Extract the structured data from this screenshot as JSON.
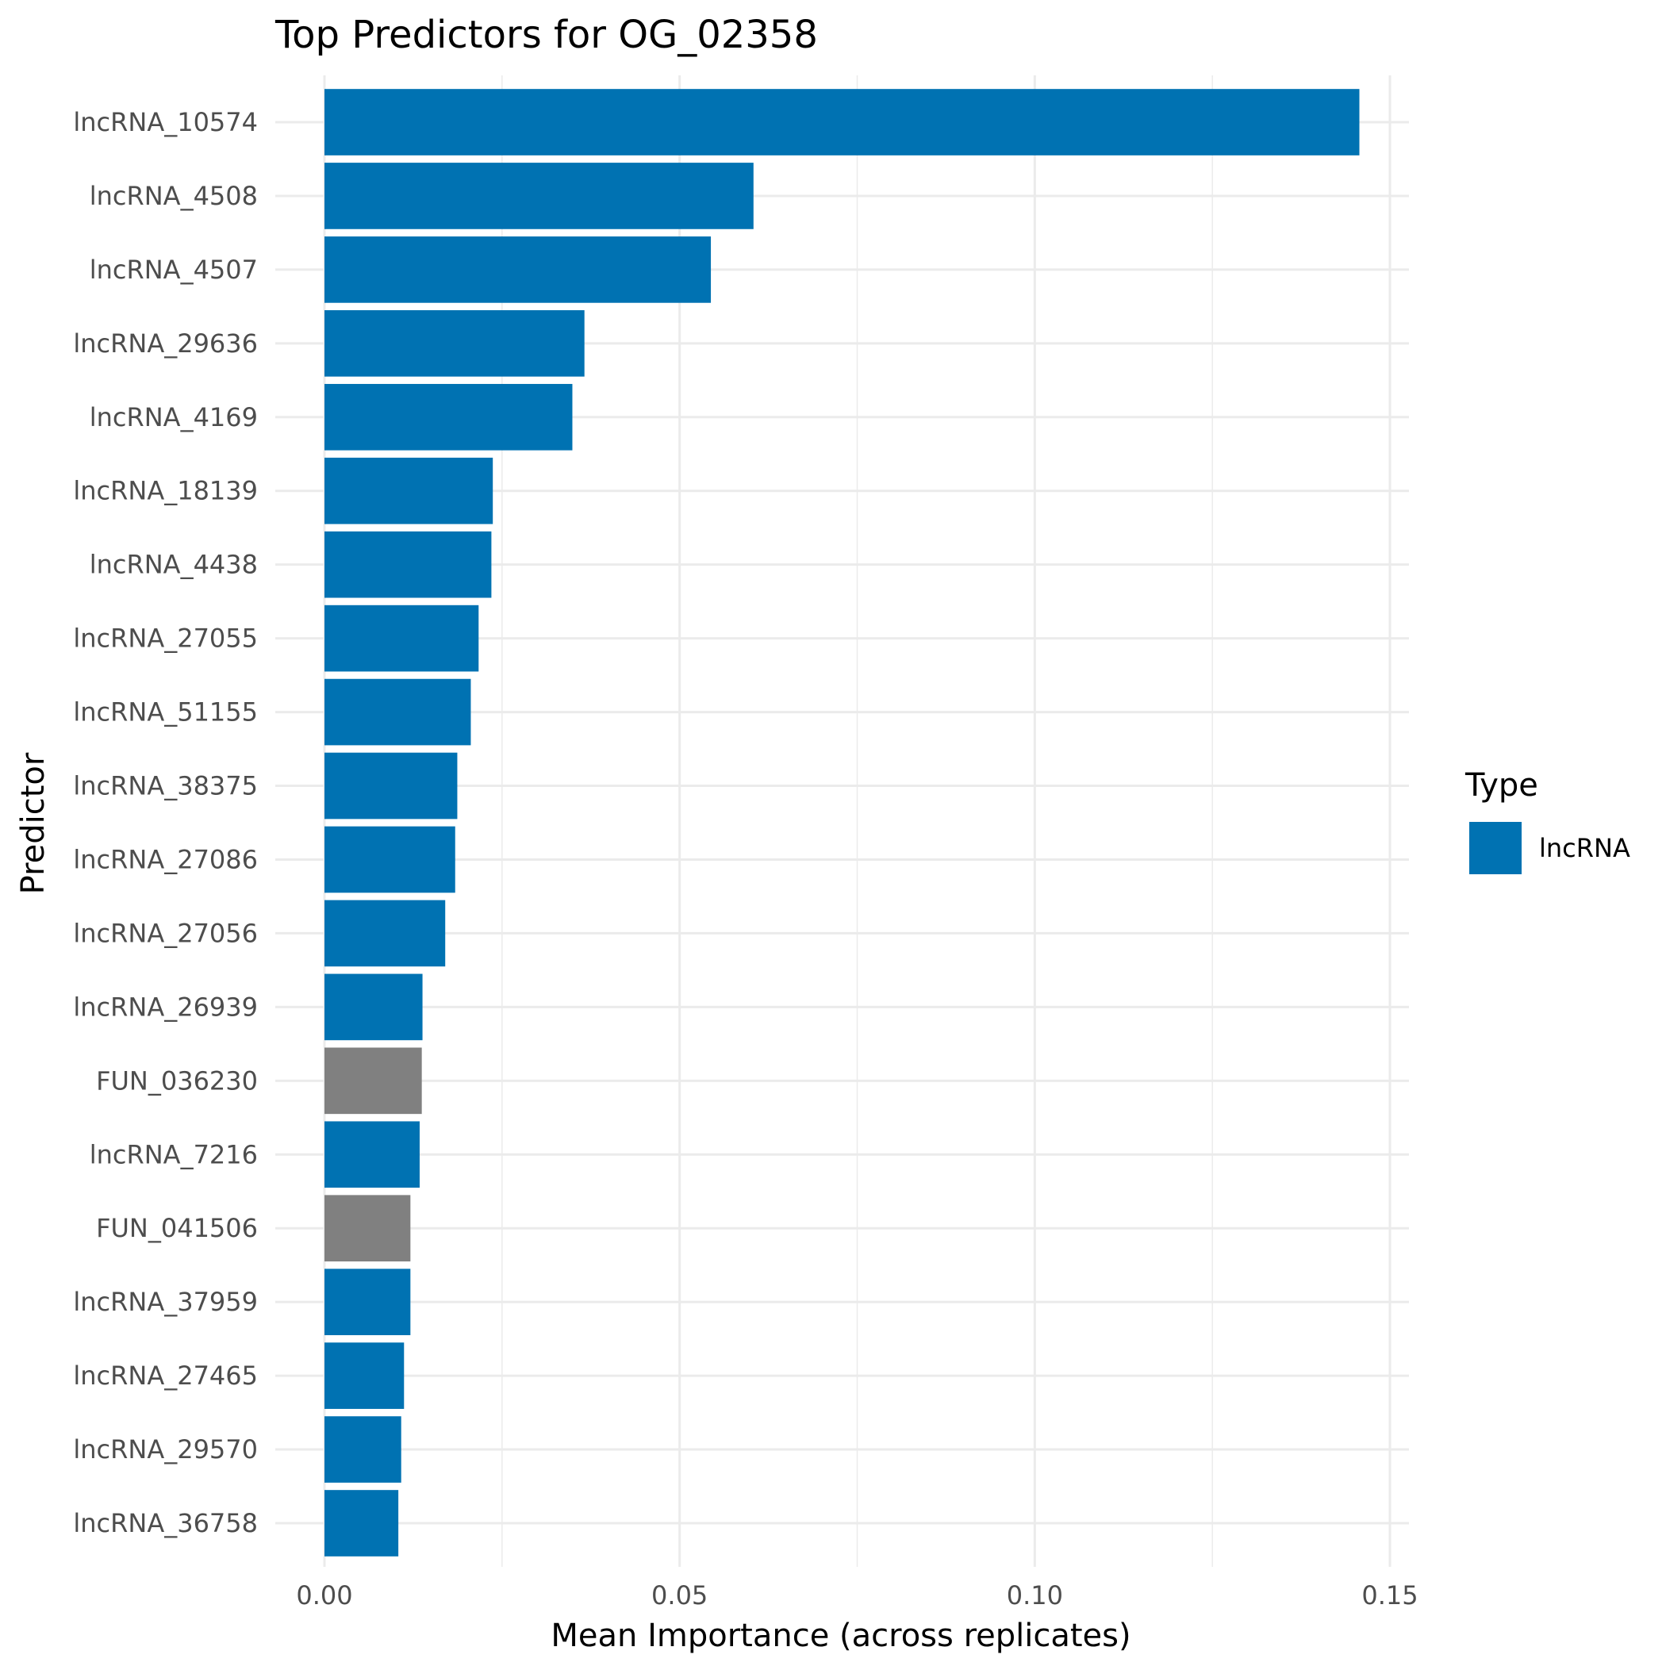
{
  "chart_data": {
    "type": "bar",
    "orientation": "horizontal",
    "title": "Top Predictors for OG_02358",
    "xlabel": "Mean Importance (across replicates)",
    "ylabel": "Predictor",
    "xlim": [
      0,
      0.153
    ],
    "xticks": [
      0.0,
      0.05,
      0.1,
      0.15
    ],
    "xtick_labels": [
      "0.00",
      "0.05",
      "0.10",
      "0.15"
    ],
    "grid": true,
    "legend": {
      "title": "Type",
      "placement": "right",
      "entries": [
        {
          "label": "lncRNA",
          "color": "#0072B2"
        }
      ]
    },
    "colors": {
      "lncRNA": "#0072B2",
      "other": "#808080"
    },
    "categories": [
      "lncRNA_10574",
      "lncRNA_4508",
      "lncRNA_4507",
      "lncRNA_29636",
      "lncRNA_4169",
      "lncRNA_18139",
      "lncRNA_4438",
      "lncRNA_27055",
      "lncRNA_51155",
      "lncRNA_38375",
      "lncRNA_27086",
      "lncRNA_27056",
      "lncRNA_26939",
      "FUN_036230",
      "lncRNA_7216",
      "FUN_041506",
      "lncRNA_37959",
      "lncRNA_27465",
      "lncRNA_29570",
      "lncRNA_36758"
    ],
    "values": [
      0.1457,
      0.0604,
      0.0544,
      0.0366,
      0.0349,
      0.0237,
      0.0235,
      0.0217,
      0.0206,
      0.0187,
      0.0184,
      0.017,
      0.0138,
      0.0137,
      0.0134,
      0.0121,
      0.0121,
      0.0112,
      0.0108,
      0.0104
    ],
    "types": [
      "lncRNA",
      "lncRNA",
      "lncRNA",
      "lncRNA",
      "lncRNA",
      "lncRNA",
      "lncRNA",
      "lncRNA",
      "lncRNA",
      "lncRNA",
      "lncRNA",
      "lncRNA",
      "lncRNA",
      "other",
      "lncRNA",
      "other",
      "lncRNA",
      "lncRNA",
      "lncRNA",
      "lncRNA"
    ]
  }
}
